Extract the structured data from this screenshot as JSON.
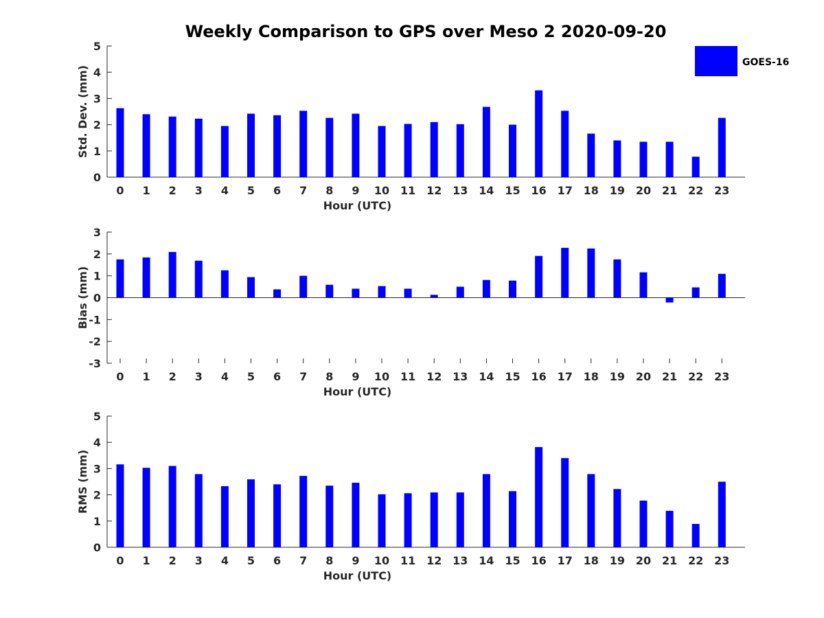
{
  "chart_data": {
    "type": "bar",
    "title": "Weekly Comparison to GPS over Meso 2 2020-09-20",
    "color": "#0000ff",
    "legend": {
      "label": "GOES-16",
      "placement": "top-right"
    },
    "categories": [
      "0",
      "1",
      "2",
      "3",
      "4",
      "5",
      "6",
      "7",
      "8",
      "9",
      "10",
      "11",
      "12",
      "13",
      "14",
      "15",
      "16",
      "17",
      "18",
      "19",
      "20",
      "21",
      "22",
      "23"
    ],
    "panels": [
      {
        "id": "std",
        "ylabel": "Std. Dev. (mm)",
        "xlabel": "Hour (UTC)",
        "ylim": [
          0,
          5
        ],
        "yticks": [
          0,
          1,
          2,
          3,
          4,
          5
        ],
        "series": [
          {
            "name": "GOES-16",
            "values": [
              2.63,
              2.4,
              2.31,
              2.23,
              1.95,
              2.42,
              2.36,
              2.53,
              2.26,
              2.42,
              1.95,
              2.03,
              2.1,
              2.02,
              2.68,
              2.0,
              3.31,
              2.53,
              1.66,
              1.4,
              1.35,
              1.35,
              0.78,
              2.26
            ]
          }
        ]
      },
      {
        "id": "bias",
        "ylabel": "Bias (mm)",
        "xlabel": "Hour (UTC)",
        "ylim": [
          -3,
          3
        ],
        "yticks": [
          -3,
          -2,
          -1,
          0,
          1,
          2,
          3
        ],
        "series": [
          {
            "name": "GOES-16",
            "values": [
              1.75,
              1.84,
              2.09,
              1.69,
              1.25,
              0.94,
              0.38,
              1.0,
              0.59,
              0.41,
              0.53,
              0.41,
              0.13,
              0.5,
              0.81,
              0.78,
              1.91,
              2.28,
              2.25,
              1.75,
              1.16,
              -0.22,
              0.47,
              1.09
            ]
          }
        ]
      },
      {
        "id": "rms",
        "ylabel": "RMS (mm)",
        "xlabel": "Hour (UTC)",
        "ylim": [
          0,
          5
        ],
        "yticks": [
          0,
          1,
          2,
          3,
          4,
          5
        ],
        "series": [
          {
            "name": "GOES-16",
            "values": [
              3.16,
              3.03,
              3.1,
              2.79,
              2.33,
              2.59,
              2.4,
              2.72,
              2.35,
              2.46,
              2.02,
              2.06,
              2.09,
              2.09,
              2.79,
              2.14,
              3.82,
              3.4,
              2.79,
              2.22,
              1.78,
              1.39,
              0.89,
              2.5
            ]
          }
        ]
      }
    ]
  }
}
